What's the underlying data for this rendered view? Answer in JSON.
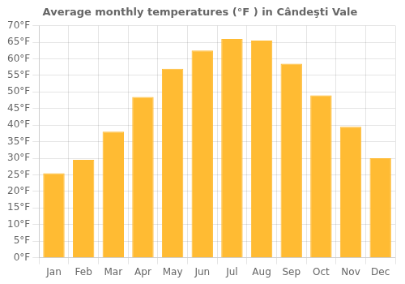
{
  "chart_data": {
    "type": "bar",
    "title": "Average monthly temperatures (°F ) in Cândeşti Vale",
    "categories": [
      "Jan",
      "Feb",
      "Mar",
      "Apr",
      "May",
      "Jun",
      "Jul",
      "Aug",
      "Sep",
      "Oct",
      "Nov",
      "Dec"
    ],
    "values": [
      25.5,
      29.5,
      38.0,
      48.5,
      57.0,
      62.5,
      66.0,
      65.5,
      58.5,
      49.0,
      39.5,
      30.0
    ],
    "color": "#FFBB33",
    "ylim": [
      0,
      70
    ],
    "yticks": [
      {
        "value": 0,
        "label": "0°F"
      },
      {
        "value": 5,
        "label": "5°F"
      },
      {
        "value": 10,
        "label": "10°F"
      },
      {
        "value": 15,
        "label": "15°F"
      },
      {
        "value": 20,
        "label": "20°F"
      },
      {
        "value": 25,
        "label": "25°F"
      },
      {
        "value": 30,
        "label": "30°F"
      },
      {
        "value": 35,
        "label": "35°F"
      },
      {
        "value": 40,
        "label": "40°F"
      },
      {
        "value": 45,
        "label": "45°F"
      },
      {
        "value": 50,
        "label": "50°F"
      },
      {
        "value": 55,
        "label": "55°F"
      },
      {
        "value": 60,
        "label": "60°F"
      },
      {
        "value": 65,
        "label": "65°F"
      },
      {
        "value": 70,
        "label": "70°F"
      }
    ],
    "grid": true
  }
}
